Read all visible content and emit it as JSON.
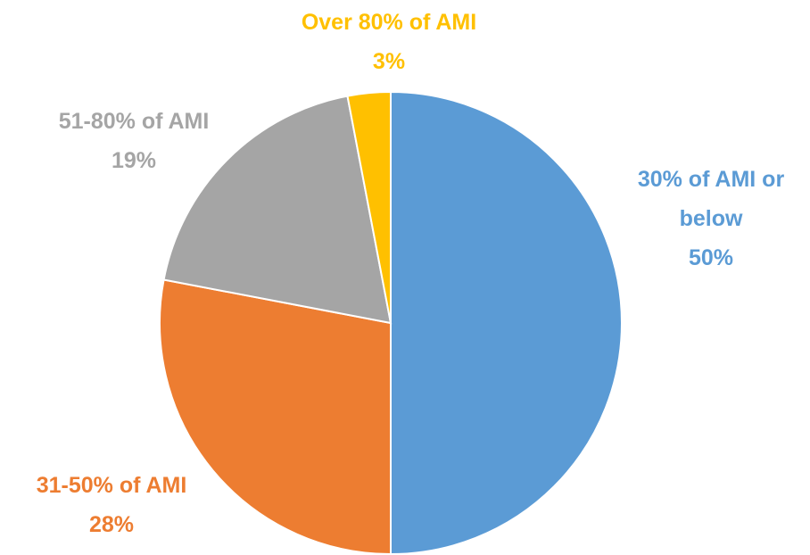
{
  "chart_data": {
    "type": "pie",
    "categories": [
      "30% of AMI or below",
      "31-50% of AMI",
      "51-80% of AMI",
      "Over 80% of AMI"
    ],
    "values": [
      50,
      28,
      19,
      3
    ],
    "value_labels": [
      "50%",
      "28%",
      "19%",
      "3%"
    ],
    "colors": [
      "#5b9bd5",
      "#ed7d31",
      "#a5a5a5",
      "#ffc000"
    ]
  }
}
